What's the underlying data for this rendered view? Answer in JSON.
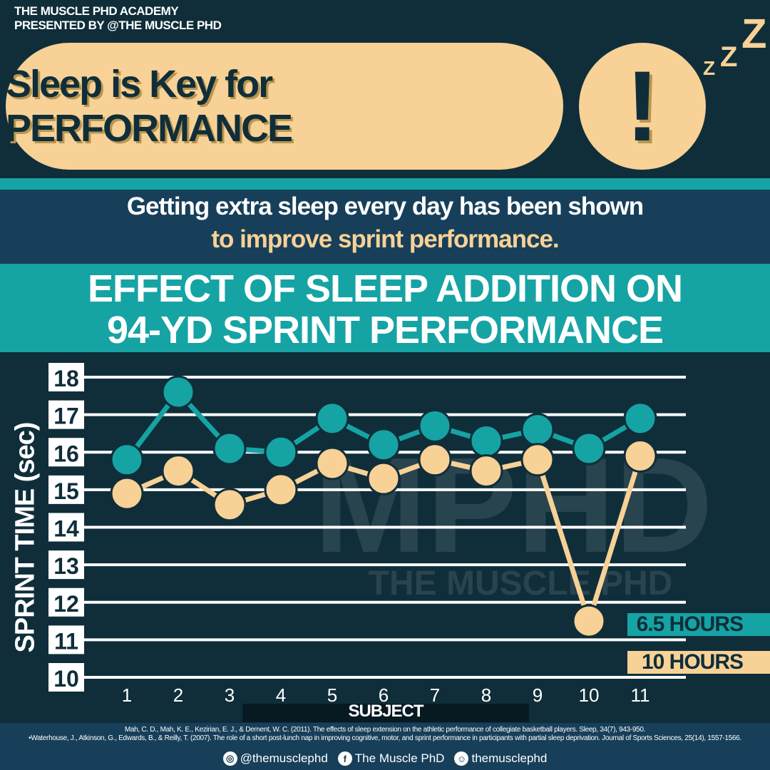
{
  "brand": {
    "line1": "THE MUSCLE PHD ACADEMY",
    "line2": "PRESENTED BY @THE MUSCLE PHD"
  },
  "headline": "Sleep is Key for PERFORMANCE",
  "exclaim": "!",
  "zzz": [
    "Z",
    "Z",
    "Z"
  ],
  "intro": {
    "line1": "Getting extra sleep every day has been shown",
    "line2": "to improve sprint performance."
  },
  "chart_title": {
    "line1": "EFFECT OF SLEEP ADDITION ON",
    "line2": "94-YD SPRINT PERFORMANCE"
  },
  "chart_data": {
    "type": "line",
    "title": "EFFECT OF SLEEP ADDITION ON 94-YD SPRINT PERFORMANCE",
    "xlabel": "SUBJECT",
    "ylabel": "SPRINT TIME (sec)",
    "x": [
      "1",
      "2",
      "3",
      "4",
      "5",
      "6",
      "7",
      "8",
      "9",
      "10",
      "11"
    ],
    "yticks": [
      18,
      17,
      16,
      15,
      14,
      13,
      12,
      11,
      10
    ],
    "ylim": [
      10,
      18
    ],
    "grid": true,
    "legend_position": "right",
    "series": [
      {
        "name": "6.5 HOURS",
        "color": "#16a3a4",
        "values": [
          15.8,
          17.6,
          16.1,
          16.0,
          16.9,
          16.2,
          16.7,
          16.3,
          16.6,
          16.1,
          16.9
        ]
      },
      {
        "name": "10 HOURS",
        "color": "#f8d196",
        "values": [
          14.9,
          15.5,
          14.6,
          15.0,
          15.7,
          15.3,
          15.8,
          15.5,
          15.8,
          11.5,
          15.9
        ]
      }
    ]
  },
  "watermark": {
    "logo": "MPHD",
    "text": "THE MUSCLE PHD"
  },
  "references": [
    "Mah, C. D., Mah, K. E., Kezirian, E. J., & Dement, W. C. (2011). The effects of sleep extension on the athletic performance of collegiate basketball players. Sleep, 34(7), 943-950.",
    "•Waterhouse, J., Atkinson, G., Edwards, B., & Reilly, T. (2007). The role of a short post-lunch nap in improving cognitive, motor, and sprint performance in participants with partial sleep deprivation. Journal of Sports Sciences, 25(14), 1557-1566."
  ],
  "social": [
    {
      "icon": "instagram-icon",
      "handle": "@themusclephd"
    },
    {
      "icon": "facebook-icon",
      "handle": "The Muscle PhD"
    },
    {
      "icon": "snapchat-icon",
      "handle": "themusclephd"
    }
  ],
  "colors": {
    "navy": "#0f2e3a",
    "teal": "#16a3a4",
    "cream": "#f8d196",
    "band": "#173f59"
  }
}
